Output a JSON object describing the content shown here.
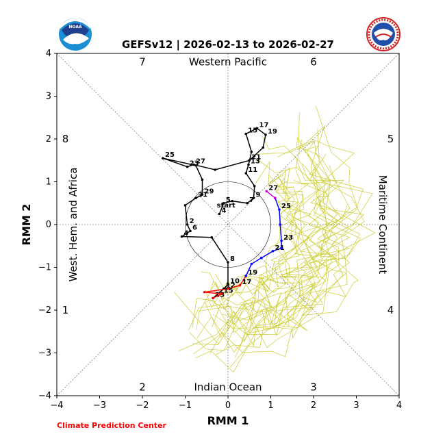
{
  "chart_data": {
    "type": "line",
    "title": "GEFSv12 | 2026-02-13 to 2026-02-27",
    "xlabel": "RMM 1",
    "ylabel": "RMM 2",
    "xlim": [
      -4,
      4
    ],
    "ylim": [
      -4,
      4
    ],
    "xticks": [
      "−4",
      "−3",
      "−2",
      "−1",
      "0",
      "1",
      "2",
      "3",
      "4"
    ],
    "yticks": [
      "−4",
      "−3",
      "−2",
      "−1",
      "0",
      "1",
      "2",
      "3",
      "4"
    ],
    "phase_numbers": [
      {
        "label": "7",
        "x": -2,
        "y": 3.8
      },
      {
        "label": "6",
        "x": 2,
        "y": 3.8
      },
      {
        "label": "8",
        "x": -3.8,
        "y": 2
      },
      {
        "label": "5",
        "x": 3.8,
        "y": 2
      },
      {
        "label": "1",
        "x": -3.8,
        "y": -2
      },
      {
        "label": "4",
        "x": 3.8,
        "y": -2
      },
      {
        "label": "2",
        "x": -2,
        "y": -3.8
      },
      {
        "label": "3",
        "x": 2,
        "y": -3.8
      }
    ],
    "regions": {
      "top": "Western Pacific",
      "bottom": "Indian Ocean",
      "left": "West. Hem. and Africa",
      "right": "Maritime Continent"
    },
    "observed_series": {
      "color": "#000000",
      "points": [
        {
          "x": -0.2,
          "y": 0.25,
          "label": "4"
        },
        {
          "x": -0.1,
          "y": 0.5,
          "label": "5"
        },
        {
          "x": 0.1,
          "y": 0.55,
          "label": ""
        },
        {
          "x": 0.45,
          "y": 0.5,
          "label": "7"
        },
        {
          "x": 0.6,
          "y": 0.62,
          "label": "9"
        },
        {
          "x": 0.62,
          "y": 0.9,
          "label": ""
        },
        {
          "x": 0.42,
          "y": 1.2,
          "label": "11"
        },
        {
          "x": 0.48,
          "y": 1.4,
          "label": "13"
        },
        {
          "x": 0.55,
          "y": 1.7,
          "label": ""
        },
        {
          "x": 0.42,
          "y": 2.12,
          "label": "15"
        },
        {
          "x": 0.68,
          "y": 2.25,
          "label": "17"
        },
        {
          "x": 0.88,
          "y": 2.1,
          "label": "19"
        },
        {
          "x": 0.82,
          "y": 1.8,
          "label": ""
        },
        {
          "x": 0.5,
          "y": 1.5,
          "label": "21"
        },
        {
          "x": -0.3,
          "y": 1.28,
          "label": ""
        },
        {
          "x": -0.8,
          "y": 1.4,
          "label": "27"
        },
        {
          "x": -0.95,
          "y": 1.35,
          "label": "23"
        },
        {
          "x": -1.52,
          "y": 1.55,
          "label": "25"
        },
        {
          "x": -0.75,
          "y": 1.38,
          "label": ""
        },
        {
          "x": -0.6,
          "y": 1.05,
          "label": ""
        },
        {
          "x": -0.6,
          "y": 0.7,
          "label": "29"
        },
        {
          "x": -0.75,
          "y": 0.62,
          "label": "31"
        },
        {
          "x": -1.0,
          "y": 0.45,
          "label": ""
        },
        {
          "x": -0.95,
          "y": 0.0,
          "label": "2"
        },
        {
          "x": -0.88,
          "y": -0.15,
          "label": "6"
        },
        {
          "x": -1.08,
          "y": -0.28,
          "label": "4"
        },
        {
          "x": -0.38,
          "y": -0.3,
          "label": ""
        },
        {
          "x": 0.0,
          "y": -0.88,
          "label": "8"
        },
        {
          "x": 0.0,
          "y": -1.4,
          "label": "10"
        },
        {
          "x": -0.1,
          "y": -1.5,
          "label": "12"
        },
        {
          "x": -0.35,
          "y": -1.72,
          "label": "13"
        }
      ]
    },
    "forecast_series": [
      {
        "color": "#ff0000",
        "points": [
          {
            "x": -0.35,
            "y": -1.72,
            "label": ""
          },
          {
            "x": -0.15,
            "y": -1.62,
            "label": "15"
          },
          {
            "x": -0.55,
            "y": -1.58,
            "label": ""
          },
          {
            "x": 0.0,
            "y": -1.5,
            "label": ""
          },
          {
            "x": 0.28,
            "y": -1.42,
            "label": "17"
          },
          {
            "x": 0.42,
            "y": -1.2,
            "label": ""
          }
        ]
      },
      {
        "color": "#0000ff",
        "points": [
          {
            "x": 0.42,
            "y": -1.2,
            "label": "19"
          },
          {
            "x": 0.55,
            "y": -0.92,
            "label": ""
          },
          {
            "x": 0.78,
            "y": -0.78,
            "label": ""
          },
          {
            "x": 1.05,
            "y": -0.62,
            "label": "21"
          },
          {
            "x": 1.25,
            "y": -0.55,
            "label": ""
          },
          {
            "x": 1.25,
            "y": -0.38,
            "label": "23"
          },
          {
            "x": 1.22,
            "y": 0.0,
            "label": ""
          },
          {
            "x": 1.2,
            "y": 0.35,
            "label": "25"
          },
          {
            "x": 1.1,
            "y": 0.62,
            "label": ""
          }
        ]
      },
      {
        "color": "#cc00cc",
        "points": [
          {
            "x": 1.1,
            "y": 0.62,
            "label": ""
          },
          {
            "x": 0.9,
            "y": 0.78,
            "label": "27"
          }
        ]
      }
    ],
    "start_marker": {
      "x": -0.2,
      "y": 0.45,
      "label": "start"
    },
    "unit_circle_radius": 1,
    "ensemble_color": "#cccc33",
    "grid": false,
    "legend": "none"
  },
  "credit": "Climate Prediction Center",
  "logos": {
    "left": "noaa-logo",
    "left_text": "NOAA",
    "right": "nws-logo",
    "right_text": "NATIONAL WEATHER SERVICE"
  }
}
